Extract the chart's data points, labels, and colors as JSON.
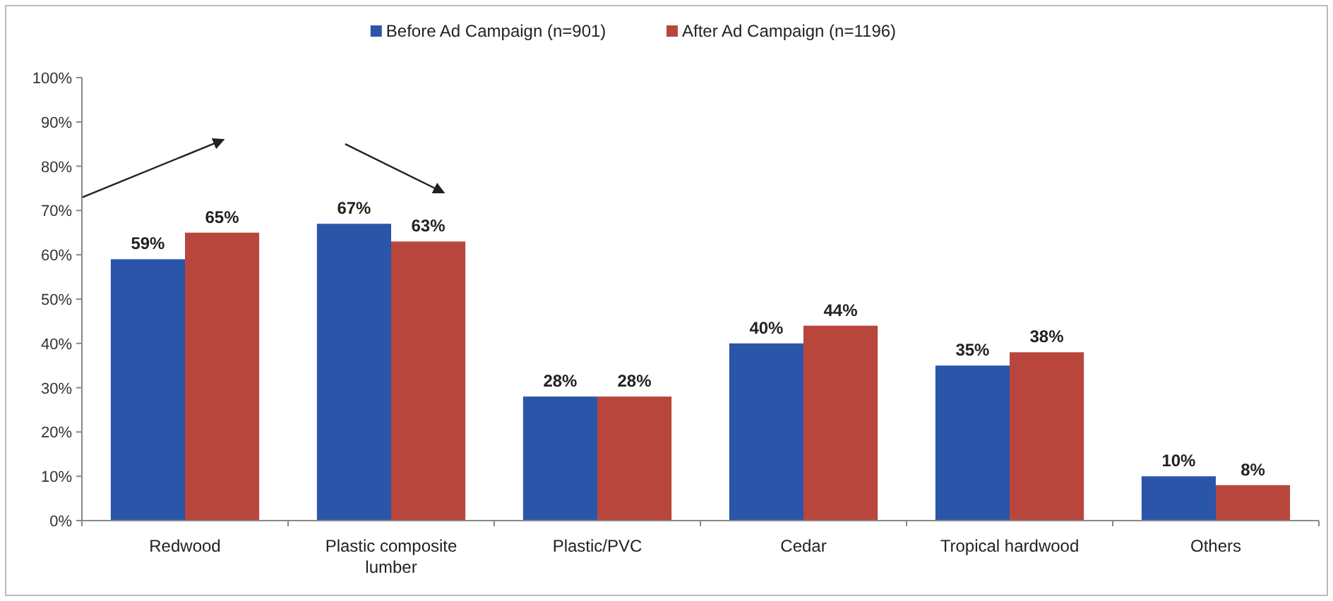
{
  "chart_data": {
    "type": "bar",
    "categories": [
      "Redwood",
      "Plastic composite lumber",
      "Plastic/PVC",
      "Cedar",
      "Tropical hardwood",
      "Others"
    ],
    "series": [
      {
        "name": "Before Ad Campaign (n=901)",
        "color": "#2a55a8",
        "values": [
          59,
          67,
          28,
          40,
          35,
          10
        ],
        "value_labels": [
          "59%",
          "67%",
          "28%",
          "40%",
          "35%",
          "10%"
        ]
      },
      {
        "name": "After Ad Campaign (n=1196)",
        "color": "#b8463c",
        "values": [
          65,
          63,
          28,
          44,
          38,
          8
        ],
        "value_labels": [
          "65%",
          "63%",
          "28%",
          "44%",
          "38%",
          "8%"
        ]
      }
    ],
    "ylim": [
      0,
      100
    ],
    "yticks": [
      {
        "value": 0,
        "label": "0%"
      },
      {
        "value": 10,
        "label": "10%"
      },
      {
        "value": 20,
        "label": "20%"
      },
      {
        "value": 30,
        "label": "30%"
      },
      {
        "value": 40,
        "label": "40%"
      },
      {
        "value": 50,
        "label": "50%"
      },
      {
        "value": 60,
        "label": "60%"
      },
      {
        "value": 70,
        "label": "70%"
      },
      {
        "value": 80,
        "label": "80%"
      },
      {
        "value": 90,
        "label": "90%"
      },
      {
        "value": 100,
        "label": "100%"
      }
    ],
    "legend": "top",
    "grid": false
  }
}
